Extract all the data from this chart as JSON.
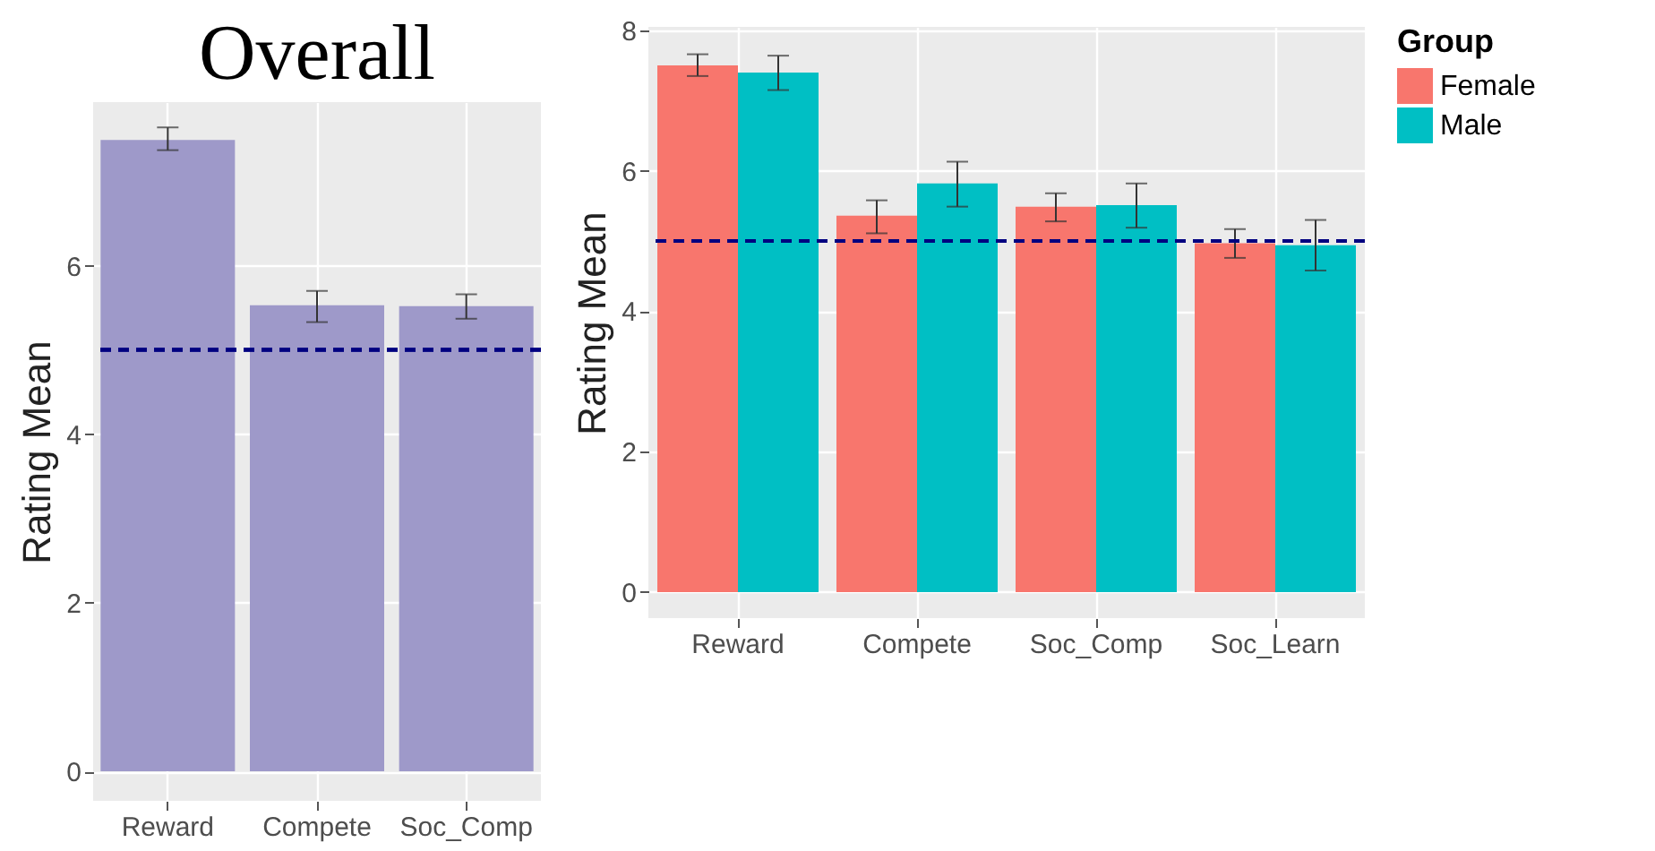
{
  "chart_data": [
    {
      "type": "bar",
      "title": "Overall",
      "ylabel": "Rating Mean",
      "categories": [
        "Reward",
        "Compete",
        "Soc_Comp"
      ],
      "series": [
        {
          "color": "#9e99c9",
          "values": [
            7.49,
            5.53,
            5.52
          ],
          "errors": [
            [
              7.37,
              7.64
            ],
            [
              5.33,
              5.7
            ],
            [
              5.37,
              5.66
            ]
          ]
        }
      ],
      "ylim": [
        -0.35,
        7.94
      ],
      "yticks": [
        0,
        2,
        4,
        6
      ],
      "grid": true,
      "legend": false,
      "ref_lines": [
        {
          "axis": "y",
          "value": 5,
          "color": "#000080",
          "line_style": "dashed"
        }
      ]
    },
    {
      "type": "bar",
      "ylabel": "Rating Mean",
      "legend_title": "Group",
      "categories": [
        "Reward",
        "Compete",
        "Soc_Comp",
        "Soc_Learn"
      ],
      "series": [
        {
          "name": "Female",
          "color": "#f8766d",
          "values": [
            7.5,
            5.36,
            5.49,
            4.97
          ],
          "errors": [
            [
              7.35,
              7.66
            ],
            [
              5.11,
              5.58
            ],
            [
              5.28,
              5.68
            ],
            [
              4.76,
              5.17
            ]
          ]
        },
        {
          "name": "Male",
          "color": "#00bfc4",
          "values": [
            7.4,
            5.82,
            5.51,
            4.94
          ],
          "errors": [
            [
              7.15,
              7.64
            ],
            [
              5.49,
              6.13
            ],
            [
              5.19,
              5.82
            ],
            [
              4.58,
              5.3
            ]
          ]
        }
      ],
      "ylim": [
        -0.37,
        8.05
      ],
      "yticks": [
        0,
        2,
        4,
        6,
        8
      ],
      "grid": true,
      "legend": "right",
      "ref_lines": [
        {
          "axis": "y",
          "value": 5,
          "color": "#000080",
          "line_style": "dashed"
        }
      ]
    }
  ]
}
